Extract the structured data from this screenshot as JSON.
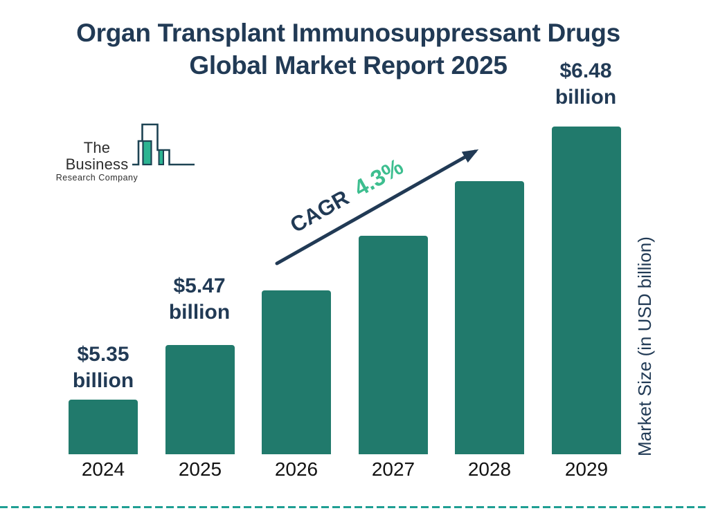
{
  "title": {
    "line1": "Organ Transplant Immunosuppressant Drugs",
    "line2": "Global Market Report 2025"
  },
  "logo": {
    "name": "The Business",
    "subtitle": "Research Company"
  },
  "cagr": {
    "label": "CAGR",
    "value": "4.3%"
  },
  "value_labels": [
    {
      "year": "2024",
      "amount": "$5.35",
      "unit": "billion"
    },
    {
      "year": "2025",
      "amount": "$5.47",
      "unit": "billion"
    },
    {
      "year": "2029",
      "amount": "$6.48",
      "unit": "billion"
    }
  ],
  "colors": {
    "bar": "#217a6c",
    "navy": "#213a55",
    "green": "#3dbe8f",
    "dashed_line": "#1f9f93",
    "axis_text": "#121212",
    "logo_fill": "#2cb492",
    "logo_stroke": "#1d4353"
  },
  "chart_data": {
    "type": "bar",
    "title": "Organ Transplant Immunosuppressant Drugs Global Market Report 2025",
    "categories": [
      "2024",
      "2025",
      "2026",
      "2027",
      "2028",
      "2029"
    ],
    "values": [
      5.35,
      5.47,
      5.7,
      5.95,
      6.21,
      6.48
    ],
    "values_estimated": [
      false,
      false,
      true,
      true,
      true,
      false
    ],
    "labeled_values": {
      "2024": "$5.35 billion",
      "2025": "$5.47 billion",
      "2029": "$6.48 billion"
    },
    "cagr": "4.3%",
    "unit": "USD billion",
    "ylabel": "Market Size (in USD billion)",
    "xlabel": "",
    "grid": false,
    "legend": false,
    "bar_style": "linear-height-progression"
  }
}
